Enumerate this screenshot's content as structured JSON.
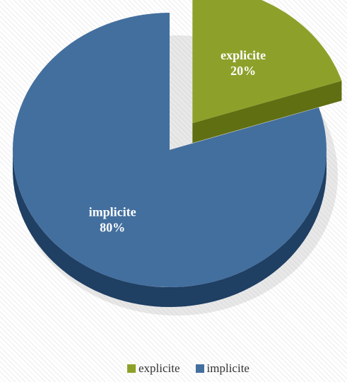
{
  "chart_data": {
    "type": "pie",
    "title": "",
    "slices": [
      {
        "name": "explicite",
        "value": 20,
        "label": "explicite",
        "pct_label": "20%",
        "color": "#8da12a",
        "color_dark": "#5f6f12",
        "exploded": true
      },
      {
        "name": "implicite",
        "value": 80,
        "label": "implicite",
        "pct_label": "80%",
        "color": "#436f9e",
        "color_dark": "#1f3f63",
        "exploded": false
      }
    ],
    "legend": {
      "position": "bottom",
      "items": [
        {
          "label": "explicite",
          "color": "#8da12a"
        },
        {
          "label": "implicite",
          "color": "#436f9e"
        }
      ]
    },
    "style": "3d"
  }
}
